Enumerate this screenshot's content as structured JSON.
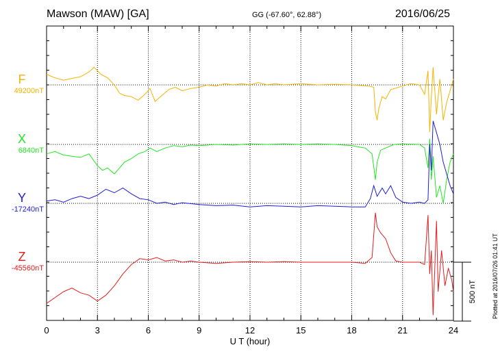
{
  "header": {
    "station": "Mawson (MAW)  [GA]",
    "coords": "GG (-67.60°,  62.88°)",
    "date": "2016/06/25"
  },
  "plotted_note": "Plotted at 2016/07/26 01:41 UT",
  "chart_data": {
    "type": "line",
    "xlabel": "U T (hour)",
    "xlim": [
      0,
      24
    ],
    "xticks": [
      "0",
      "3",
      "6",
      "9",
      "12",
      "15",
      "18",
      "21",
      "24"
    ],
    "scale_bar": {
      "label": "500 nT",
      "value_nT": 500
    },
    "series": [
      {
        "name": "F",
        "baseline_label": "49200nT",
        "baseline_nT": 49200,
        "color": "#f5b300",
        "points": [
          [
            0,
            90
          ],
          [
            0.5,
            60
          ],
          [
            1,
            40
          ],
          [
            1.5,
            55
          ],
          [
            2,
            70
          ],
          [
            2.5,
            110
          ],
          [
            2.8,
            150
          ],
          [
            3.2,
            90
          ],
          [
            3.6,
            60
          ],
          [
            4,
            0
          ],
          [
            4.3,
            -70
          ],
          [
            4.6,
            -90
          ],
          [
            5,
            -100
          ],
          [
            5.4,
            -130
          ],
          [
            5.8,
            -80
          ],
          [
            6.1,
            -30
          ],
          [
            6.4,
            -140
          ],
          [
            6.8,
            -90
          ],
          [
            7.2,
            -40
          ],
          [
            7.6,
            -20
          ],
          [
            8,
            -50
          ],
          [
            8.5,
            -30
          ],
          [
            9,
            -20
          ],
          [
            9.5,
            0
          ],
          [
            10,
            -10
          ],
          [
            10.5,
            10
          ],
          [
            11,
            0
          ],
          [
            11.5,
            10
          ],
          [
            12,
            0
          ],
          [
            12.5,
            20
          ],
          [
            13,
            0
          ],
          [
            13.5,
            10
          ],
          [
            14,
            0
          ],
          [
            15,
            10
          ],
          [
            16,
            0
          ],
          [
            17,
            5
          ],
          [
            18,
            0
          ],
          [
            19,
            -10
          ],
          [
            19.3,
            -20
          ],
          [
            19.4,
            -230
          ],
          [
            19.5,
            -300
          ],
          [
            19.6,
            -200
          ],
          [
            19.8,
            -100
          ],
          [
            20,
            -120
          ],
          [
            20.3,
            -40
          ],
          [
            21,
            -10
          ],
          [
            21.5,
            10
          ],
          [
            22,
            0
          ],
          [
            22.3,
            -80
          ],
          [
            22.5,
            120
          ],
          [
            22.6,
            -400
          ],
          [
            22.7,
            -100
          ],
          [
            22.8,
            150
          ],
          [
            23,
            -250
          ],
          [
            23.2,
            50
          ],
          [
            23.4,
            -300
          ],
          [
            23.6,
            -150
          ],
          [
            23.8,
            -50
          ],
          [
            24,
            50
          ]
        ]
      },
      {
        "name": "X",
        "baseline_label": "6840nT",
        "baseline_nT": 6840,
        "color": "#22e622",
        "points": [
          [
            0,
            -80
          ],
          [
            0.5,
            -60
          ],
          [
            1,
            -90
          ],
          [
            1.5,
            -100
          ],
          [
            2,
            -110
          ],
          [
            2.5,
            -80
          ],
          [
            3,
            -180
          ],
          [
            3.3,
            -220
          ],
          [
            3.6,
            -200
          ],
          [
            4,
            -250
          ],
          [
            4.3,
            -200
          ],
          [
            4.6,
            -150
          ],
          [
            5,
            -120
          ],
          [
            5.4,
            -80
          ],
          [
            5.8,
            -60
          ],
          [
            6.1,
            -30
          ],
          [
            6.5,
            -60
          ],
          [
            7,
            -30
          ],
          [
            7.5,
            -10
          ],
          [
            8,
            -20
          ],
          [
            8.5,
            -5
          ],
          [
            9,
            -10
          ],
          [
            10,
            0
          ],
          [
            11,
            -5
          ],
          [
            12,
            5
          ],
          [
            13,
            0
          ],
          [
            14,
            5
          ],
          [
            15,
            0
          ],
          [
            16,
            5
          ],
          [
            17,
            0
          ],
          [
            18,
            -10
          ],
          [
            18.8,
            -30
          ],
          [
            19.2,
            -80
          ],
          [
            19.4,
            -300
          ],
          [
            19.5,
            -150
          ],
          [
            19.7,
            -50
          ],
          [
            20,
            -30
          ],
          [
            20.5,
            0
          ],
          [
            21,
            5
          ],
          [
            22,
            0
          ],
          [
            22.3,
            -30
          ],
          [
            22.5,
            -200
          ],
          [
            22.6,
            50
          ],
          [
            22.7,
            -300
          ],
          [
            22.8,
            -100
          ],
          [
            23,
            -450
          ],
          [
            23.2,
            -350
          ],
          [
            23.4,
            -500
          ],
          [
            23.6,
            -300
          ],
          [
            23.8,
            -150
          ],
          [
            24,
            -80
          ]
        ]
      },
      {
        "name": "Y",
        "baseline_label": "-17240nT",
        "baseline_nT": -17240,
        "color": "#1a1ad9",
        "points": [
          [
            0,
            20
          ],
          [
            0.5,
            30
          ],
          [
            1,
            10
          ],
          [
            1.5,
            40
          ],
          [
            2,
            60
          ],
          [
            2.5,
            40
          ],
          [
            3,
            70
          ],
          [
            3.5,
            120
          ],
          [
            4,
            90
          ],
          [
            4.5,
            130
          ],
          [
            5,
            80
          ],
          [
            5.5,
            40
          ],
          [
            6,
            30
          ],
          [
            6.5,
            0
          ],
          [
            7,
            10
          ],
          [
            7.5,
            -10
          ],
          [
            8,
            5
          ],
          [
            9,
            -10
          ],
          [
            10,
            -20
          ],
          [
            11,
            -15
          ],
          [
            12,
            -30
          ],
          [
            13,
            -20
          ],
          [
            14,
            -25
          ],
          [
            15,
            -30
          ],
          [
            16,
            -20
          ],
          [
            17,
            -25
          ],
          [
            18,
            -30
          ],
          [
            18.8,
            -30
          ],
          [
            19.1,
            40
          ],
          [
            19.3,
            150
          ],
          [
            19.5,
            60
          ],
          [
            19.8,
            130
          ],
          [
            20,
            80
          ],
          [
            20.3,
            150
          ],
          [
            20.6,
            50
          ],
          [
            21,
            10
          ],
          [
            21.5,
            0
          ],
          [
            22,
            10
          ],
          [
            22.3,
            0
          ],
          [
            22.5,
            30
          ],
          [
            22.6,
            500
          ],
          [
            22.7,
            280
          ],
          [
            22.8,
            700
          ],
          [
            23,
            600
          ],
          [
            23.2,
            500
          ],
          [
            23.4,
            350
          ],
          [
            23.6,
            250
          ],
          [
            23.8,
            150
          ],
          [
            24,
            80
          ]
        ]
      },
      {
        "name": "Z",
        "baseline_label": "-45560nT",
        "baseline_nT": -45560,
        "color": "#e61a1a",
        "points": [
          [
            0,
            -350
          ],
          [
            0.5,
            -300
          ],
          [
            1,
            -250
          ],
          [
            1.5,
            -220
          ],
          [
            2,
            -260
          ],
          [
            2.5,
            -280
          ],
          [
            3,
            -330
          ],
          [
            3.5,
            -280
          ],
          [
            4,
            -200
          ],
          [
            4.5,
            -100
          ],
          [
            5,
            -20
          ],
          [
            5.5,
            30
          ],
          [
            6,
            20
          ],
          [
            6.5,
            40
          ],
          [
            7,
            10
          ],
          [
            7.5,
            20
          ],
          [
            8,
            0
          ],
          [
            8.5,
            10
          ],
          [
            9,
            0
          ],
          [
            10,
            -10
          ],
          [
            11,
            0
          ],
          [
            12,
            5
          ],
          [
            13,
            0
          ],
          [
            14,
            5
          ],
          [
            15,
            0
          ],
          [
            16,
            0
          ],
          [
            17,
            0
          ],
          [
            18,
            0
          ],
          [
            18.8,
            -10
          ],
          [
            19.2,
            40
          ],
          [
            19.4,
            420
          ],
          [
            19.5,
            300
          ],
          [
            19.7,
            250
          ],
          [
            20,
            200
          ],
          [
            20.3,
            80
          ],
          [
            20.6,
            10
          ],
          [
            21,
            0
          ],
          [
            22,
            0
          ],
          [
            22.3,
            -20
          ],
          [
            22.5,
            400
          ],
          [
            22.6,
            -100
          ],
          [
            22.7,
            100
          ],
          [
            22.8,
            -450
          ],
          [
            23,
            350
          ],
          [
            23.1,
            -250
          ],
          [
            23.3,
            100
          ],
          [
            23.5,
            -200
          ],
          [
            23.7,
            -50
          ],
          [
            23.9,
            -150
          ],
          [
            24,
            -250
          ]
        ]
      }
    ]
  }
}
